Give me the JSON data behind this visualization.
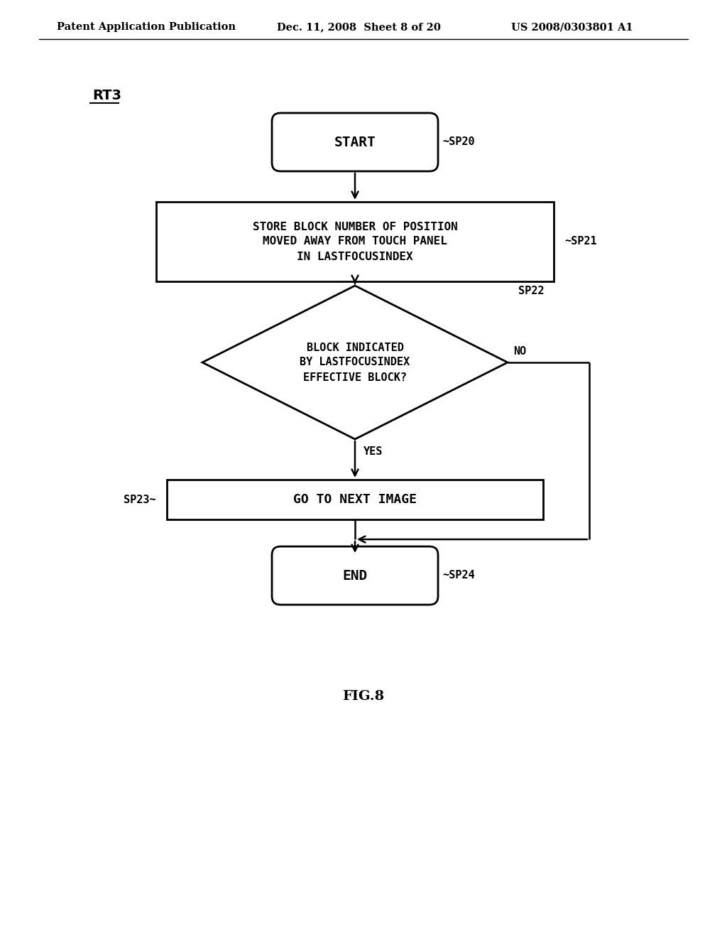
{
  "bg_color": "#ffffff",
  "header_left": "Patent Application Publication",
  "header_mid": "Dec. 11, 2008  Sheet 8 of 20",
  "header_right": "US 2008/0303801 A1",
  "label_rt3": "RT3",
  "start_text": "START",
  "sp20_label": "SP20",
  "sp21_text_line1": "STORE BLOCK NUMBER OF POSITION",
  "sp21_text_line2": "MOVED AWAY FROM TOUCH PANEL",
  "sp21_text_line3": "IN LASTFOCUSINDEX",
  "sp21_label": "SP21",
  "sp22_text_line1": "BLOCK INDICATED",
  "sp22_text_line2": "BY LASTFOCUSINDEX",
  "sp22_text_line3": "EFFECTIVE BLOCK?",
  "sp22_label": "SP22",
  "no_label": "NO",
  "yes_label": "YES",
  "sp23_text": "GO TO NEXT IMAGE",
  "sp23_label": "SP23",
  "end_text": "END",
  "sp24_label": "SP24",
  "figure_label": "FIG.8",
  "line_color": "#000000",
  "text_color": "#000000"
}
